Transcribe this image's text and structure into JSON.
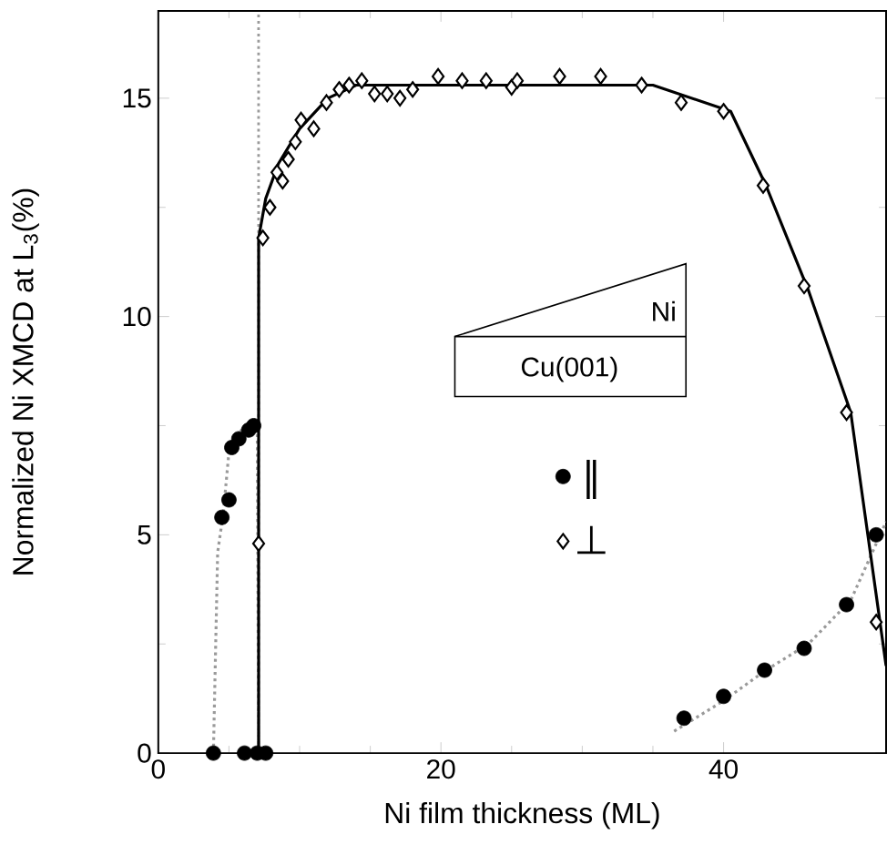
{
  "chart_data": {
    "type": "scatter",
    "xlabel": "Ni film thickness (ML)",
    "ylabel": "Normalized  Ni  XMCD at L$_{3}$(%)",
    "xlim": [
      0,
      51.5
    ],
    "ylim": [
      0,
      17
    ],
    "xticks": [
      0,
      20,
      40
    ],
    "yticks": [
      0,
      5,
      10,
      15
    ],
    "grid": false,
    "legend": "center",
    "annotations": [
      "Ni",
      "Cu(001)"
    ],
    "ref_lines": [
      {
        "axis": "x",
        "value": 7.1,
        "color": "#9a9a9a",
        "line_style": "dotted"
      }
    ],
    "series": [
      {
        "type": "line",
        "color": "#9a9a9a",
        "line_style": "dotted",
        "marker": "none",
        "x": [
          3.9,
          4.2,
          4.6,
          5.0,
          5.5,
          6.3,
          7.0,
          7.1
        ],
        "values": [
          0,
          4.6,
          5.5,
          6.9,
          7.3,
          7.5,
          7.6,
          0
        ]
      },
      {
        "type": "line",
        "color": "#9a9a9a",
        "line_style": "dotted",
        "marker": "none",
        "x": [
          36.5,
          40.0,
          43.0,
          46.0,
          49.0,
          51.5
        ],
        "values": [
          0.5,
          1.2,
          1.9,
          2.5,
          3.5,
          5.3
        ]
      },
      {
        "type": "line",
        "color": "#000000",
        "line_style": "solid",
        "marker": "none",
        "x": [
          7.1,
          7.1,
          7.6,
          8.5,
          10.0,
          12.0,
          14.0,
          35.0,
          40.5,
          43.0,
          46.0,
          49.0,
          51.5
        ],
        "values": [
          0,
          11.8,
          12.7,
          13.5,
          14.3,
          15.0,
          15.3,
          15.3,
          14.7,
          13.0,
          10.6,
          7.8,
          2.0
        ]
      },
      {
        "type": "scatter",
        "name": "∥",
        "color": "#000000",
        "marker": "circle",
        "x": [
          3.9,
          4.5,
          5.0,
          5.2,
          5.7,
          6.4,
          6.75,
          6.1,
          7.0,
          7.6,
          37.2,
          40.0,
          42.9,
          45.7,
          48.7,
          50.8
        ],
        "values": [
          0,
          5.4,
          5.8,
          7.0,
          7.2,
          7.4,
          7.5,
          0,
          0,
          0,
          0.8,
          1.3,
          1.9,
          2.4,
          3.4,
          5.0
        ]
      },
      {
        "type": "scatter",
        "name": "⊥",
        "color": "#000000",
        "marker": "diamond",
        "x": [
          7.1,
          7.4,
          7.9,
          8.4,
          8.8,
          9.2,
          9.7,
          10.1,
          11.0,
          11.9,
          12.8,
          13.5,
          14.4,
          15.3,
          16.2,
          17.1,
          18.0,
          19.8,
          21.5,
          23.2,
          25.0,
          25.4,
          28.4,
          31.3,
          34.2,
          37.0,
          40.0,
          42.8,
          45.7,
          48.7,
          50.8
        ],
        "values": [
          4.8,
          11.8,
          12.5,
          13.3,
          13.1,
          13.6,
          14.0,
          14.5,
          14.3,
          14.9,
          15.2,
          15.3,
          15.4,
          15.1,
          15.1,
          15.0,
          15.2,
          15.5,
          15.4,
          15.4,
          15.25,
          15.4,
          15.5,
          15.5,
          15.3,
          14.9,
          14.7,
          13.0,
          10.7,
          7.8,
          3.0
        ]
      }
    ]
  }
}
